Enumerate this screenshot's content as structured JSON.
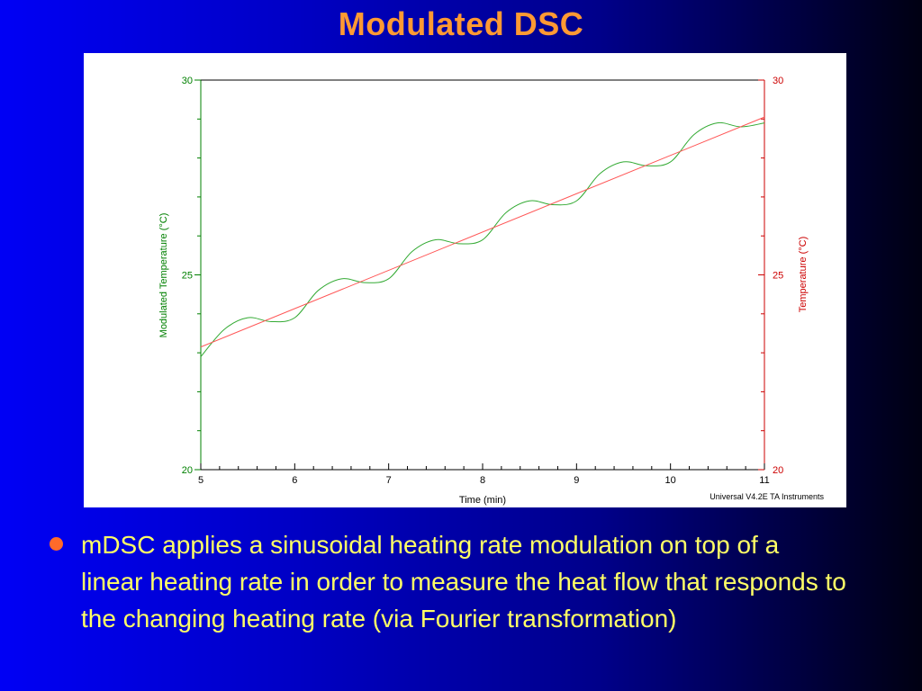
{
  "slide": {
    "title": "Modulated DSC",
    "bullet": "mDSC applies a sinusoidal heating rate modulation on top of a linear heating rate in order to measure the heat flow that responds to the changing heating rate (via Fourier transformation)"
  },
  "chart_data": {
    "type": "line",
    "xlabel": "Time (min)",
    "ylabel_left": "Modulated Temperature (°C)",
    "ylabel_right": "Temperature (°C)",
    "xlim": [
      5,
      11
    ],
    "ylim_left": [
      20,
      30
    ],
    "ylim_right": [
      20,
      30
    ],
    "x_ticks": [
      5,
      6,
      7,
      8,
      9,
      10,
      11
    ],
    "y_ticks_left": [
      20,
      25,
      30
    ],
    "y_ticks_right": [
      20,
      25,
      30
    ],
    "grid": false,
    "footer": "Universal V4.2E TA Instruments",
    "colors": {
      "left_axis": "#008000",
      "right_axis": "#cc0000",
      "modulated": "#33aa33",
      "linear": "#ff5555"
    },
    "series": [
      {
        "axis": "left",
        "x": [
          5.0,
          5.25,
          5.5,
          5.75,
          6.0,
          6.25,
          6.5,
          6.75,
          7.0,
          7.25,
          7.5,
          7.75,
          8.0,
          8.25,
          8.5,
          8.75,
          9.0,
          9.25,
          9.5,
          9.75,
          10.0,
          10.25,
          10.5,
          10.75,
          11.0
        ],
        "values": [
          22.9,
          23.6,
          23.9,
          23.8,
          23.9,
          24.6,
          24.9,
          24.8,
          24.9,
          25.6,
          25.9,
          25.8,
          25.9,
          26.6,
          26.9,
          26.8,
          26.9,
          27.6,
          27.9,
          27.8,
          27.9,
          28.6,
          28.9,
          28.8,
          28.9
        ]
      },
      {
        "axis": "right",
        "x": [
          5,
          11
        ],
        "values": [
          23.15,
          29.05
        ]
      }
    ]
  }
}
